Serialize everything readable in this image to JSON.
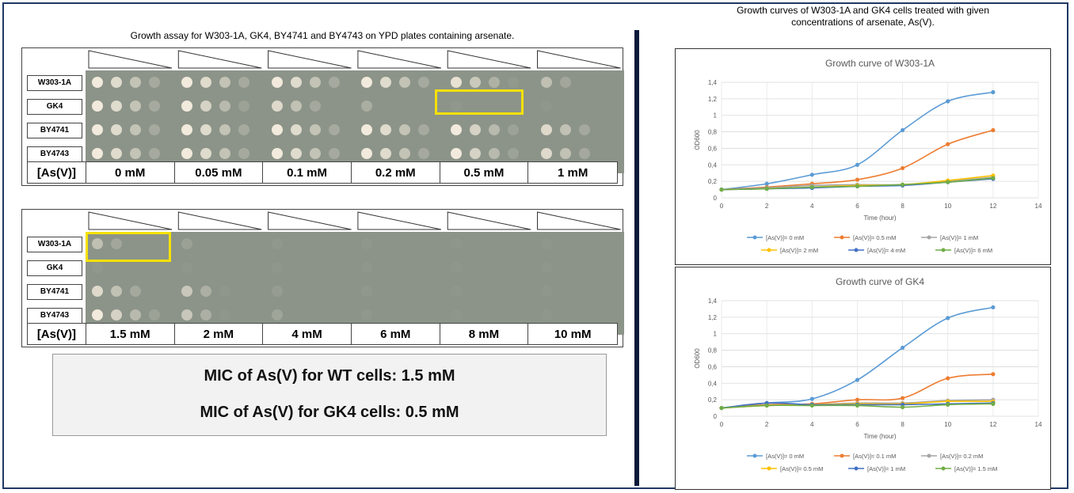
{
  "left_panel": {
    "title": "Growth assay for W303-1A, GK4, BY4741 and BY4743 on YPD plates containing arsenate.",
    "strains": [
      "W303-1A",
      "GK4",
      "BY4741",
      "BY4743"
    ],
    "row_label": "[As(V)]",
    "plate1_concentrations": [
      "0 mM",
      "0.05 mM",
      "0.1 mM",
      "0.2 mM",
      "0.5 mM",
      "1 mM"
    ],
    "plate2_concentrations": [
      "1.5 mM",
      "2 mM",
      "4 mM",
      "6 mM",
      "8 mM",
      "10 mM"
    ],
    "mic_wt": "MIC of As(V) for WT cells: 1.5 mM",
    "mic_gk4": "MIC of As(V) for GK4 cells: 0.5 mM"
  },
  "right_panel": {
    "title_line1": "Growth curves of W303-1A and GK4 cells treated with given",
    "title_line2": "concentrations of arsenate, As(V)."
  },
  "chart_data": [
    {
      "type": "line",
      "title": "Growth curve of W303-1A",
      "xlabel": "Time (hour)",
      "ylabel": "OD600",
      "xlim": [
        0,
        14
      ],
      "ylim": [
        0,
        1.4
      ],
      "x_ticks": [
        "0",
        "2",
        "4",
        "6",
        "8",
        "10",
        "12",
        "14"
      ],
      "y_ticks": [
        "0",
        "0,2",
        "0,4",
        "0,6",
        "0,8",
        "1",
        "1,2",
        "1,4"
      ],
      "legend_position": "bottom",
      "x": [
        0,
        2,
        4,
        6,
        8,
        10,
        12
      ],
      "series": [
        {
          "name": "[As(V)]= 0 mM",
          "color": "#5b9bd5",
          "values": [
            0.1,
            0.17,
            0.28,
            0.4,
            0.82,
            1.17,
            1.28
          ]
        },
        {
          "name": "[As(V)]= 0.5 mM",
          "color": "#ed7d31",
          "values": [
            0.1,
            0.13,
            0.17,
            0.22,
            0.36,
            0.65,
            0.82
          ]
        },
        {
          "name": "[As(V)]= 1 mM",
          "color": "#a5a5a5",
          "values": [
            0.1,
            0.12,
            0.15,
            0.16,
            0.16,
            0.2,
            0.25
          ]
        },
        {
          "name": "[As(V)]= 2 mM",
          "color": "#ffc000",
          "values": [
            0.1,
            0.11,
            0.13,
            0.15,
            0.16,
            0.21,
            0.27
          ]
        },
        {
          "name": "[As(V)]= 4 mM",
          "color": "#4472c4",
          "values": [
            0.1,
            0.11,
            0.12,
            0.14,
            0.15,
            0.19,
            0.23
          ]
        },
        {
          "name": "[As(V)]= 6 mM",
          "color": "#70ad47",
          "values": [
            0.1,
            0.11,
            0.13,
            0.14,
            0.16,
            0.19,
            0.24
          ]
        }
      ]
    },
    {
      "type": "line",
      "title": "Growth curve of GK4",
      "xlabel": "Time (hour)",
      "ylabel": "OD600",
      "xlim": [
        0,
        14
      ],
      "ylim": [
        0,
        1.4
      ],
      "x_ticks": [
        "0",
        "2",
        "4",
        "6",
        "8",
        "10",
        "12",
        "14"
      ],
      "y_ticks": [
        "0",
        "0,2",
        "0,4",
        "0,6",
        "0,8",
        "1",
        "1,2",
        "1,4"
      ],
      "legend_position": "bottom",
      "x": [
        0,
        2,
        4,
        6,
        8,
        10,
        12
      ],
      "series": [
        {
          "name": "[As(V)]= 0 mM",
          "color": "#5b9bd5",
          "values": [
            0.1,
            0.16,
            0.21,
            0.44,
            0.83,
            1.19,
            1.32
          ]
        },
        {
          "name": "[As(V)]= 0.1 mM",
          "color": "#ed7d31",
          "values": [
            0.1,
            0.14,
            0.15,
            0.2,
            0.22,
            0.46,
            0.51
          ]
        },
        {
          "name": "[As(V)]= 0.2 mM",
          "color": "#a5a5a5",
          "values": [
            0.1,
            0.13,
            0.14,
            0.16,
            0.16,
            0.19,
            0.2
          ]
        },
        {
          "name": "[As(V)]= 0.5 mM",
          "color": "#ffc000",
          "values": [
            0.1,
            0.13,
            0.14,
            0.15,
            0.15,
            0.18,
            0.18
          ]
        },
        {
          "name": "[As(V)]= 1 mM",
          "color": "#4472c4",
          "values": [
            0.1,
            0.16,
            0.14,
            0.14,
            0.14,
            0.15,
            0.16
          ]
        },
        {
          "name": "[As(V)]= 1.5 mM",
          "color": "#70ad47",
          "values": [
            0.1,
            0.13,
            0.13,
            0.13,
            0.11,
            0.14,
            0.15
          ]
        }
      ]
    }
  ]
}
